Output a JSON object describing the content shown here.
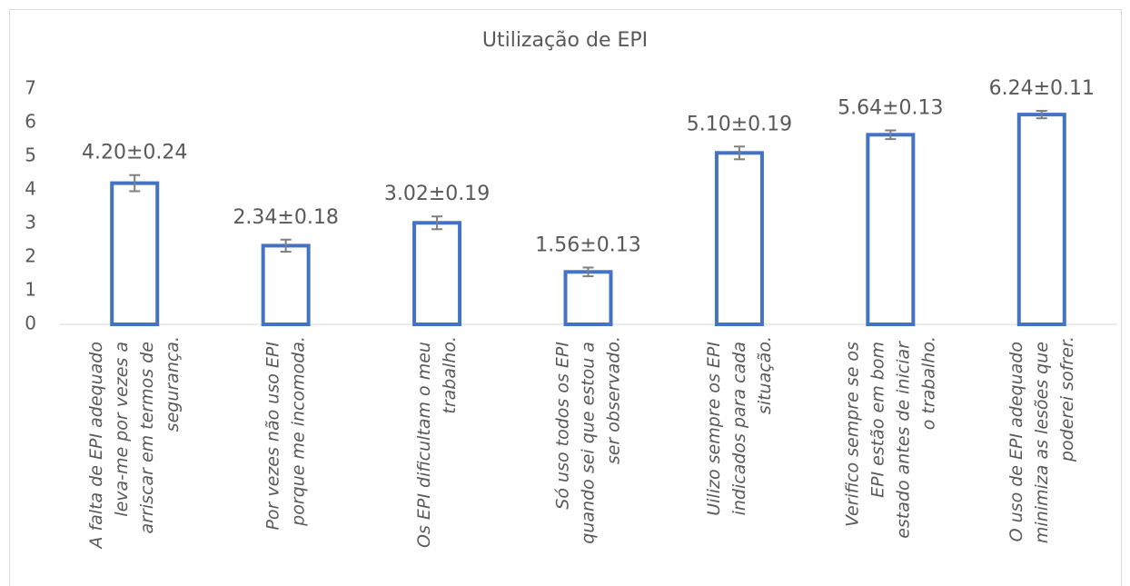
{
  "chart_data": {
    "type": "bar",
    "title": "Utilização de EPI",
    "categories": [
      "A falta de EPI adequado\nleva-me por vezes a\narriscar em termos de\nsegurança.",
      "Por vezes não uso EPI\nporque me incomoda.",
      "Os EPI dificultam o meu\ntrabalho.",
      "Só uso todos os EPI\nquando sei que estou a\nser observado.",
      "Uilizo sempre os EPI\nindicados para cada\nsituação.",
      "Verifico sempre se os\nEPI estão em bom\nestado antes de iniciar\no trabalho.",
      "O uso de EPI adequado\nminimiza as lesões que\npoderei sofrer."
    ],
    "values": [
      4.2,
      2.34,
      3.02,
      1.56,
      5.1,
      5.64,
      6.24
    ],
    "errors": [
      0.24,
      0.18,
      0.19,
      0.13,
      0.19,
      0.13,
      0.11
    ],
    "value_labels": [
      "4.20±0.24",
      "2.34±0.18",
      "3.02±0.19",
      "1.56±0.13",
      "5.10±0.19",
      "5.64±0.13",
      "6.24±0.11"
    ],
    "color": "#4472c4",
    "error_color": "#7f7f7f",
    "ylim": [
      0,
      7
    ],
    "yticks": [
      0,
      1,
      2,
      3,
      4,
      5,
      6,
      7
    ],
    "grid": false
  }
}
